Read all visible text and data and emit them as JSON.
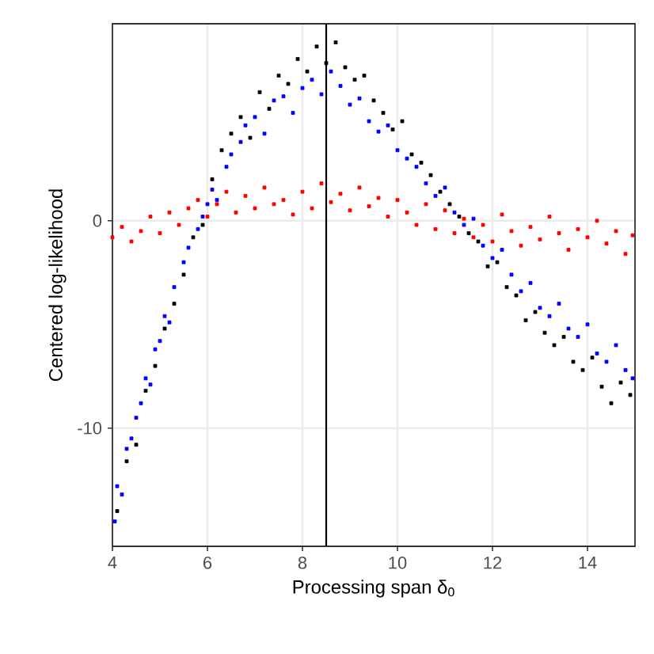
{
  "chart_data": {
    "type": "scatter",
    "xlabel": "Processing span δ$_{0}$",
    "ylabel": "Centered log-likelihood",
    "xlim": [
      4,
      15
    ],
    "ylim": [
      -15.7,
      9.5
    ],
    "xticks": [
      4,
      6,
      8,
      10,
      12,
      14
    ],
    "yticks": [
      -10,
      0
    ],
    "grid": true,
    "marker": "square",
    "ref_lines": [
      {
        "axis": "x",
        "value": 8.5,
        "color": "#000000"
      }
    ],
    "series": [
      {
        "color": "#000000",
        "x": [
          4.1,
          4.3,
          4.5,
          4.7,
          4.9,
          5.1,
          5.3,
          5.5,
          5.7,
          5.9,
          6.1,
          6.3,
          6.5,
          6.7,
          6.9,
          7.1,
          7.3,
          7.5,
          7.7,
          7.9,
          8.1,
          8.3,
          8.5,
          8.7,
          8.9,
          9.1,
          9.3,
          9.5,
          9.7,
          9.9,
          10.1,
          10.3,
          10.5,
          10.7,
          10.9,
          11.1,
          11.3,
          11.5,
          11.7,
          11.9,
          12.1,
          12.3,
          12.5,
          12.7,
          12.9,
          13.1,
          13.3,
          13.5,
          13.7,
          13.9,
          14.1,
          14.3,
          14.5,
          14.7,
          14.9
        ],
        "values": [
          -14.0,
          -11.6,
          -10.8,
          -8.2,
          -7.0,
          -5.2,
          -4.0,
          -2.6,
          -0.8,
          -0.2,
          2.0,
          3.4,
          4.2,
          5.0,
          4.0,
          6.2,
          5.4,
          7.0,
          6.6,
          7.8,
          7.2,
          8.4,
          7.6,
          8.6,
          7.4,
          6.8,
          7.0,
          5.8,
          5.2,
          4.4,
          4.8,
          3.2,
          2.8,
          2.2,
          1.4,
          0.8,
          0.2,
          -0.6,
          -1.0,
          -2.2,
          -2.0,
          -3.2,
          -3.6,
          -4.8,
          -4.4,
          -5.4,
          -6.0,
          -5.6,
          -6.8,
          -7.2,
          -6.6,
          -8.0,
          -8.8,
          -7.8,
          -8.4
        ]
      },
      {
        "color": "#0000ff",
        "x": [
          4.05,
          4.1,
          4.2,
          4.3,
          4.4,
          4.5,
          4.6,
          4.7,
          4.8,
          4.9,
          5.0,
          5.1,
          5.2,
          5.3,
          5.5,
          5.6,
          5.8,
          5.9,
          6.0,
          6.1,
          6.2,
          6.4,
          6.5,
          6.7,
          6.8,
          7.0,
          7.2,
          7.4,
          7.6,
          7.8,
          8.0,
          8.2,
          8.4,
          8.6,
          8.8,
          9.0,
          9.2,
          9.4,
          9.6,
          9.8,
          10.0,
          10.2,
          10.4,
          10.6,
          10.8,
          11.0,
          11.2,
          11.4,
          11.6,
          11.8,
          12.0,
          12.2,
          12.4,
          12.6,
          12.8,
          13.0,
          13.2,
          13.4,
          13.6,
          13.8,
          14.0,
          14.2,
          14.4,
          14.6,
          14.8,
          14.95
        ],
        "values": [
          -14.5,
          -12.8,
          -13.2,
          -11.0,
          -10.5,
          -9.5,
          -8.8,
          -7.6,
          -7.9,
          -6.2,
          -5.8,
          -4.6,
          -4.9,
          -3.2,
          -2.0,
          -1.3,
          -0.4,
          0.2,
          0.8,
          1.5,
          1.0,
          2.6,
          3.2,
          3.8,
          4.6,
          5.0,
          4.2,
          5.8,
          6.0,
          5.2,
          6.4,
          6.8,
          6.1,
          7.2,
          6.5,
          5.6,
          5.9,
          4.8,
          4.3,
          4.6,
          3.4,
          3.0,
          2.6,
          1.8,
          1.2,
          1.6,
          0.4,
          -0.2,
          0.1,
          -1.2,
          -1.8,
          -1.4,
          -2.6,
          -3.4,
          -3.0,
          -4.2,
          -4.6,
          -4.0,
          -5.2,
          -5.6,
          -5.0,
          -6.4,
          -6.8,
          -6.0,
          -7.2,
          -7.6
        ]
      },
      {
        "color": "#ff0000",
        "x": [
          4.0,
          4.2,
          4.4,
          4.6,
          4.8,
          5.0,
          5.2,
          5.4,
          5.6,
          5.8,
          6.0,
          6.2,
          6.4,
          6.6,
          6.8,
          7.0,
          7.2,
          7.4,
          7.6,
          7.8,
          8.0,
          8.2,
          8.4,
          8.6,
          8.8,
          9.0,
          9.2,
          9.4,
          9.6,
          9.8,
          10.0,
          10.2,
          10.4,
          10.6,
          10.8,
          11.0,
          11.2,
          11.4,
          11.6,
          11.8,
          12.0,
          12.2,
          12.4,
          12.6,
          12.8,
          13.0,
          13.2,
          13.4,
          13.6,
          13.8,
          14.0,
          14.2,
          14.4,
          14.6,
          14.8,
          14.95
        ],
        "values": [
          -0.8,
          -0.3,
          -1.0,
          -0.5,
          0.2,
          -0.6,
          0.4,
          -0.2,
          0.6,
          1.0,
          0.2,
          0.8,
          1.4,
          0.4,
          1.2,
          0.6,
          1.6,
          0.8,
          1.0,
          0.3,
          1.4,
          0.6,
          1.8,
          0.9,
          1.3,
          0.5,
          1.6,
          0.7,
          1.1,
          0.2,
          1.0,
          0.4,
          -0.2,
          0.8,
          -0.4,
          0.5,
          -0.6,
          0.1,
          -0.8,
          -0.2,
          -1.0,
          0.3,
          -0.5,
          -1.2,
          -0.3,
          -0.9,
          0.2,
          -0.6,
          -1.4,
          -0.4,
          -0.8,
          0.0,
          -1.1,
          -0.5,
          -1.6,
          -0.7
        ]
      }
    ]
  }
}
